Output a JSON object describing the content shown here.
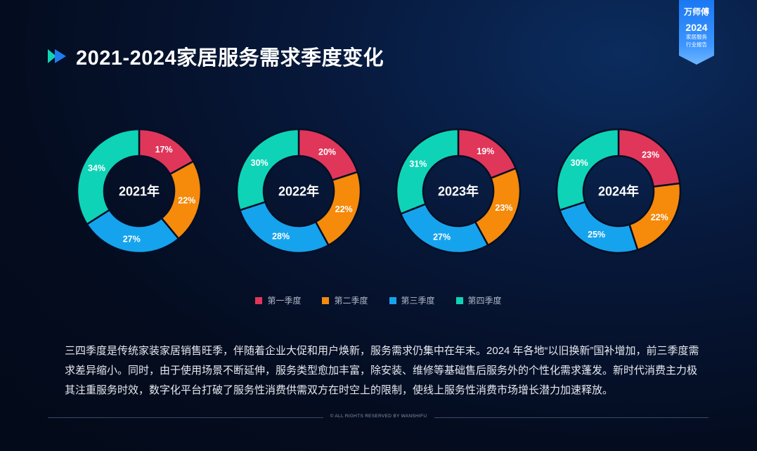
{
  "page": {
    "title": "2021-2024家居服务需求季度变化",
    "description": "三四季度是传统家装家居销售旺季，伴随着企业大促和用户焕新，服务需求仍集中在年末。2024 年各地“以旧换新”国补增加，前三季度需求差异缩小。同时，由于使用场景不断延伸，服务类型愈加丰富，除安装、维修等基础售后服务外的个性化需求蓬发。新时代消费主力极其注重服务时效，数字化平台打破了服务性消费供需双方在时空上的限制，使线上服务性消费市场增长潜力加速释放。",
    "footer": "© ALL RIGHTS RESERVED BY WANSHIFU"
  },
  "brand": {
    "name": "万师傅",
    "year": "2024",
    "line1": "家居服务",
    "line2": "行业报告"
  },
  "colors": {
    "q1": "#e0365a",
    "q2": "#f58a0b",
    "q3": "#16a3ee",
    "q4": "#0fd3b6",
    "title_icon_a": "#0fd3b6",
    "title_icon_b": "#1f7cf0"
  },
  "chart_data": {
    "type": "pie",
    "variant": "donut",
    "series_names": [
      "第一季度",
      "第二季度",
      "第三季度",
      "第四季度"
    ],
    "charts": [
      {
        "label": "2021年",
        "values": [
          17,
          22,
          27,
          34
        ],
        "value_labels": [
          "17%",
          "22%",
          "27%",
          "34%"
        ]
      },
      {
        "label": "2022年",
        "values": [
          20,
          22,
          28,
          30
        ],
        "value_labels": [
          "20%",
          "22%",
          "28%",
          "30%"
        ]
      },
      {
        "label": "2023年",
        "values": [
          19,
          23,
          27,
          31
        ],
        "value_labels": [
          "19%",
          "23%",
          "27%",
          "31%"
        ]
      },
      {
        "label": "2024年",
        "values": [
          23,
          22,
          25,
          30
        ],
        "value_labels": [
          "23%",
          "22%",
          "25%",
          "30%"
        ]
      }
    ],
    "legend": [
      "第一季度",
      "第二季度",
      "第三季度",
      "第四季度"
    ],
    "legend_position": "bottom-center"
  }
}
